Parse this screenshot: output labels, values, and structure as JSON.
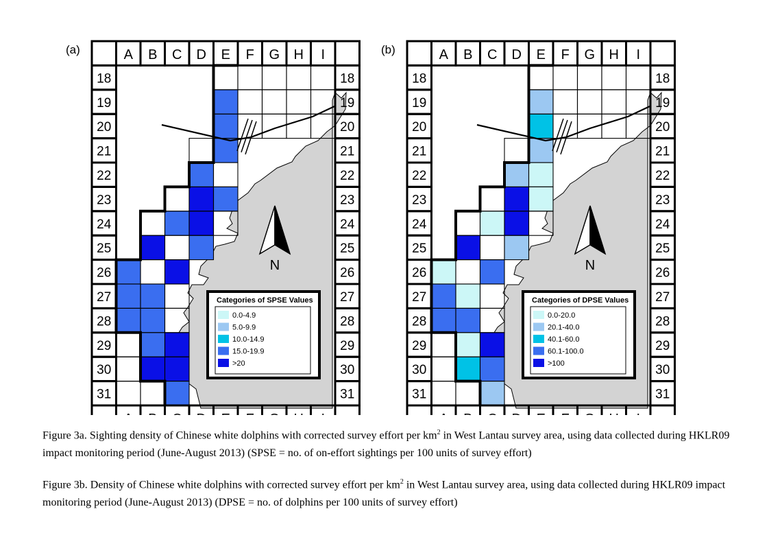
{
  "columns": [
    "A",
    "B",
    "C",
    "D",
    "E",
    "F",
    "G",
    "H",
    "I"
  ],
  "rows": [
    "18",
    "19",
    "20",
    "21",
    "22",
    "23",
    "24",
    "25",
    "26",
    "27",
    "28",
    "29",
    "30",
    "31"
  ],
  "north_label": "N",
  "colors": {
    "c1": "#ccf7f7",
    "c2": "#9cc8f2",
    "c3": "#00c2e6",
    "c4": "#3a6ef0",
    "c5": "#0a10e6",
    "land": "#d3d3d3"
  },
  "panels": [
    {
      "tag": "(a)",
      "legend_title": "Categories of SPSE Values",
      "legend_items": [
        "0.0-4.9",
        "5.0-9.9",
        "10.0-14.9",
        "15.0-19.9",
        ">20"
      ],
      "cells": [
        {
          "col": "E",
          "row": "19",
          "cat": 4
        },
        {
          "col": "E",
          "row": "20",
          "cat": 4
        },
        {
          "col": "E",
          "row": "21",
          "cat": 4
        },
        {
          "col": "D",
          "row": "22",
          "cat": 4
        },
        {
          "col": "D",
          "row": "23",
          "cat": 5
        },
        {
          "col": "E",
          "row": "23",
          "cat": 4
        },
        {
          "col": "C",
          "row": "24",
          "cat": 4
        },
        {
          "col": "D",
          "row": "24",
          "cat": 5
        },
        {
          "col": "B",
          "row": "25",
          "cat": 5
        },
        {
          "col": "D",
          "row": "25",
          "cat": 4
        },
        {
          "col": "A",
          "row": "26",
          "cat": 4
        },
        {
          "col": "C",
          "row": "26",
          "cat": 5
        },
        {
          "col": "A",
          "row": "27",
          "cat": 4
        },
        {
          "col": "B",
          "row": "27",
          "cat": 4
        },
        {
          "col": "A",
          "row": "28",
          "cat": 4
        },
        {
          "col": "B",
          "row": "28",
          "cat": 4
        },
        {
          "col": "B",
          "row": "29",
          "cat": 4
        },
        {
          "col": "C",
          "row": "29",
          "cat": 5
        },
        {
          "col": "B",
          "row": "30",
          "cat": 5
        },
        {
          "col": "C",
          "row": "30",
          "cat": 5
        },
        {
          "col": "C",
          "row": "31",
          "cat": 4
        }
      ]
    },
    {
      "tag": "(b)",
      "legend_title": "Categories of DPSE Values",
      "legend_items": [
        "0.0-20.0",
        "20.1-40.0",
        "40.1-60.0",
        "60.1-100.0",
        ">100"
      ],
      "cells": [
        {
          "col": "E",
          "row": "19",
          "cat": 2
        },
        {
          "col": "E",
          "row": "20",
          "cat": 3
        },
        {
          "col": "E",
          "row": "21",
          "cat": 2
        },
        {
          "col": "D",
          "row": "22",
          "cat": 2
        },
        {
          "col": "E",
          "row": "22",
          "cat": 1
        },
        {
          "col": "D",
          "row": "23",
          "cat": 5
        },
        {
          "col": "E",
          "row": "23",
          "cat": 1
        },
        {
          "col": "C",
          "row": "24",
          "cat": 1
        },
        {
          "col": "D",
          "row": "24",
          "cat": 5
        },
        {
          "col": "B",
          "row": "25",
          "cat": 5
        },
        {
          "col": "D",
          "row": "25",
          "cat": 2
        },
        {
          "col": "A",
          "row": "26",
          "cat": 1
        },
        {
          "col": "C",
          "row": "26",
          "cat": 4
        },
        {
          "col": "A",
          "row": "27",
          "cat": 4
        },
        {
          "col": "B",
          "row": "27",
          "cat": 1
        },
        {
          "col": "A",
          "row": "28",
          "cat": 4
        },
        {
          "col": "B",
          "row": "28",
          "cat": 4
        },
        {
          "col": "B",
          "row": "29",
          "cat": 1
        },
        {
          "col": "C",
          "row": "29",
          "cat": 5
        },
        {
          "col": "B",
          "row": "30",
          "cat": 3
        },
        {
          "col": "C",
          "row": "30",
          "cat": 4
        },
        {
          "col": "C",
          "row": "31",
          "cat": 2
        }
      ]
    }
  ],
  "captions": [
    {
      "part1": "Figure 3a.  Sighting density of Chinese white dolphins with corrected survey effort per km",
      "sup": "2",
      "part2": " in West Lantau survey area, using data collected during HKLR09 impact monitoring period (June-August 2013) (SPSE = no. of on-effort sightings per 100 units of survey effort)"
    },
    {
      "part1": "Figure 3b.  Density of Chinese white dolphins with corrected survey effort per km",
      "sup": "2",
      "part2": " in West Lantau survey area, using data collected during HKLR09 impact monitoring period (June-August 2013) (DPSE = no. of dolphins per 100 units of survey effort)"
    }
  ]
}
